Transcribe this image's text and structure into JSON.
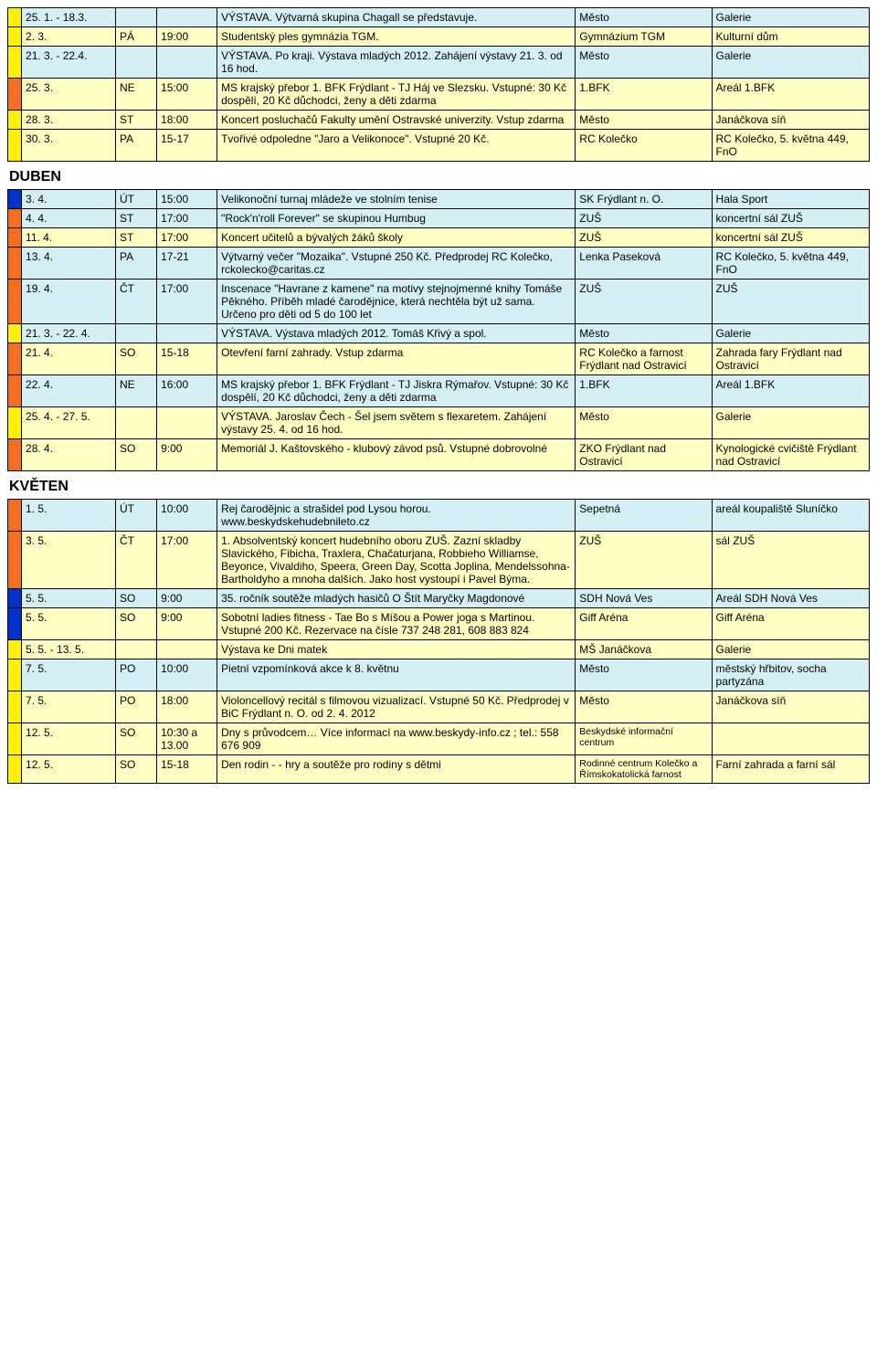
{
  "colors": {
    "cyan": "#d5f0f4",
    "lemon": "#ffffc3",
    "yellow": "#fff200",
    "orange": "#f36e21",
    "blue": "#0033cc"
  },
  "months": {
    "duben": "DUBEN",
    "kveten": "KVĚTEN"
  },
  "rows_top": [
    {
      "stripe": "yellow",
      "bg": "cyan",
      "date": "25. 1. - 18.3.",
      "day": "",
      "time": "",
      "desc": "VÝSTAVA. Výtvarná skupina Chagall se představuje.",
      "org": "Město",
      "loc": "Galerie"
    },
    {
      "stripe": "yellow",
      "bg": "lemon",
      "date": "2. 3.",
      "day": "PÁ",
      "time": "19:00",
      "desc": "Studentský ples gymnázia TGM.",
      "org": "Gymnázium TGM",
      "loc": "Kulturní dům"
    },
    {
      "stripe": "yellow",
      "bg": "cyan",
      "date": "21. 3. - 22.4.",
      "day": "",
      "time": "",
      "desc": "VÝSTAVA. Po kraji. Výstava mladých 2012. Zahájení výstavy 21. 3.  od 16 hod.",
      "org": "Město",
      "loc": "Galerie"
    },
    {
      "stripe": "orange",
      "bg": "lemon",
      "date": "25. 3.",
      "day": "NE",
      "time": "15:00",
      "desc": "MS krajský přebor 1. BFK Frýdlant - TJ Háj ve Slezsku. Vstupné: 30 Kč dospělí, 20 Kč důchodci, ženy a děti zdarma",
      "org": "1.BFK",
      "loc": "Areál 1.BFK"
    },
    {
      "stripe": "yellow",
      "bg": "lemon",
      "date": "28. 3.",
      "day": "ST",
      "time": "18:00",
      "desc": "Koncert posluchačů Fakulty umění Ostravské univerzity. Vstup zdarma",
      "org": "Město",
      "loc": "Janáčkova síň"
    },
    {
      "stripe": "yellow",
      "bg": "lemon",
      "date": "30. 3.",
      "day": "PA",
      "time": "15-17",
      "desc": "Tvořivé odpoledne \"Jaro a Velikonoce\". Vstupné 20 Kč.",
      "org": "RC Kolečko",
      "loc": "RC Kolečko, 5. května 449, FnO"
    }
  ],
  "rows_duben": [
    {
      "stripe": "blue",
      "bg": "cyan",
      "date": "3. 4.",
      "day": "ÚT",
      "time": "15:00",
      "desc": "Velikonoční turnaj mládeže ve stolním tenise",
      "org": "SK Frýdlant n. O.",
      "loc": "Hala Sport"
    },
    {
      "stripe": "orange",
      "bg": "cyan",
      "date": "4. 4.",
      "day": "ST",
      "time": "17:00",
      "desc": "\"Rock'n'roll Forever\" se skupinou Humbug",
      "org": "ZUŠ",
      "loc": "koncertní sál ZUŠ"
    },
    {
      "stripe": "orange",
      "bg": "lemon",
      "date": "11. 4.",
      "day": "ST",
      "time": "17:00",
      "desc": "Koncert učitelů a bývalých žáků školy",
      "org": "ZUŠ",
      "loc": "koncertní sál ZUŠ"
    },
    {
      "stripe": "orange",
      "bg": "cyan",
      "date": "13. 4.",
      "day": "PA",
      "time": "17-21",
      "desc": "Výtvarný večer \"Mozaika\". Vstupné 250 Kč. Předprodej RC Kolečko, rckolecko@caritas.cz",
      "org": "Lenka Paseková",
      "loc": "RC Kolečko, 5. května 449, FnO"
    },
    {
      "stripe": "orange",
      "bg": "cyan",
      "date": "19. 4.",
      "day": "ČT",
      "time": "17:00",
      "desc": "Inscenace \"Havrane z kamene\" na motivy stejnojmenné knihy Tomáše Pěkného. Příběh mladé čarodějnice, která nechtěla být už sama. Určeno pro děti od 5 do 100 let",
      "org": "ZUŠ",
      "loc": "ZUŠ"
    },
    {
      "stripe": "yellow",
      "bg": "cyan",
      "date": "21. 3. - 22. 4.",
      "day": "",
      "time": "",
      "desc": "VÝSTAVA. Výstava mladých 2012. Tomáš Křivý a spol.",
      "org": "Město",
      "loc": "Galerie"
    },
    {
      "stripe": "orange",
      "bg": "lemon",
      "date": "21. 4.",
      "day": "SO",
      "time": "15-18",
      "desc": "Otevření farní zahrady. Vstup zdarma",
      "org": "RC Kolečko a farnost Frýdlant nad Ostravicí",
      "loc": "Zahrada fary Frýdlant nad Ostravicí"
    },
    {
      "stripe": "orange",
      "bg": "cyan",
      "date": "22. 4.",
      "day": "NE",
      "time": "16:00",
      "desc": "MS krajský přebor 1. BFK Frýdlant - TJ Jiskra Rýmařov. Vstupné: 30 Kč dospělí, 20 Kč důchodci, ženy a děti zdarma",
      "org": "1.BFK",
      "loc": "Areál 1.BFK"
    },
    {
      "stripe": "yellow",
      "bg": "lemon",
      "date": "25. 4. - 27. 5.",
      "day": "",
      "time": "",
      "desc": "VÝSTAVA. Jaroslav Čech - Šel jsem světem s flexaretem. Zahájení výstavy 25. 4. od 16 hod.",
      "org": "Město",
      "loc": "Galerie"
    },
    {
      "stripe": "orange",
      "bg": "lemon",
      "date": "28. 4.",
      "day": "SO",
      "time": "9:00",
      "desc": "Memoriál J. Kaštovského - klubový závod psů. Vstupné dobrovolné",
      "org": "ZKO Frýdlant nad Ostravicí",
      "loc": "Kynologické cvičiště Frýdlant nad Ostravicí"
    }
  ],
  "rows_kveten": [
    {
      "stripe": "orange",
      "bg": "cyan",
      "date": "1. 5.",
      "day": "ÚT",
      "time": "10:00",
      "desc": "Rej čarodějnic a strašidel pod Lysou horou. www.beskydskehudebnileto.cz",
      "org": "Sepetná",
      "loc": "areál koupaliště Sluníčko"
    },
    {
      "stripe": "orange",
      "bg": "lemon",
      "date": "3. 5.",
      "day": "ČT",
      "time": "17:00",
      "desc": "1. Absolventský koncert hudebního oboru ZUŠ. Zazní skladby Slavického, Fibicha, Traxlera, Chačaturjana, Robbieho Williamse, Beyonce, Vivaldiho, Speera, Green Day, Scotta Joplina, Mendelssohna-Bartholdyho a mnoha dalších. Jako host vystoupí i Pavel Býma.",
      "org": "ZUŠ",
      "loc": "sál ZUŠ"
    },
    {
      "stripe": "blue",
      "bg": "cyan",
      "date": "5. 5.",
      "day": "SO",
      "time": "9:00",
      "desc": "35. ročník soutěže mladých hasičů O Štít Maryčky Magdonové",
      "org": "SDH Nová Ves",
      "loc": "Areál SDH Nová Ves"
    },
    {
      "stripe": "blue",
      "bg": "lemon",
      "date": "5. 5.",
      "day": "SO",
      "time": "9:00",
      "desc": "Sobotní ladies fitness - Tae Bo s Míšou a Power joga s Martinou. Vstupné 200 Kč. Rezervace na čísle 737 248 281, 608 883 824",
      "org": "Giff Aréna",
      "loc": "Giff Aréna"
    },
    {
      "stripe": "yellow",
      "bg": "lemon",
      "date": "5. 5. - 13. 5.",
      "day": "",
      "time": "",
      "desc": "Výstava ke Dni matek",
      "org": "MŠ Janáčkova",
      "loc": "Galerie"
    },
    {
      "stripe": "yellow",
      "bg": "cyan",
      "date": "7. 5.",
      "day": "PO",
      "time": "10:00",
      "desc": "Pietní vzpomínková akce k 8. květnu",
      "org": "Město",
      "loc": "městský hřbitov, socha partyzána"
    },
    {
      "stripe": "yellow",
      "bg": "lemon",
      "date": "7. 5.",
      "day": "PO",
      "time": "18:00",
      "desc": "Violoncellový recitál s filmovou vizualizací. Vstupné 50 Kč. Předprodej v BiC Frýdlant n. O. od 2. 4. 2012",
      "org": "Město",
      "loc": "Janáčkova síň"
    },
    {
      "stripe": "yellow",
      "bg": "lemon",
      "date": "12. 5.",
      "day": "SO",
      "time": "10:30 a 13.00",
      "desc": "Dny s průvodcem… Více informací na www.beskydy-info.cz ; tel.: 558 676 909",
      "org": "Beskydské informační centrum",
      "org_small": true,
      "loc": ""
    },
    {
      "stripe": "yellow",
      "bg": "lemon",
      "date": "12. 5.",
      "day": "SO",
      "time": "15-18",
      "desc": "Den rodin - - hry a soutěže pro rodiny s dětmi",
      "org": "Rodinné centrum Kolečko a Římskokatolická farnost",
      "org_small": true,
      "loc": "Farní zahrada a farní sál"
    }
  ]
}
